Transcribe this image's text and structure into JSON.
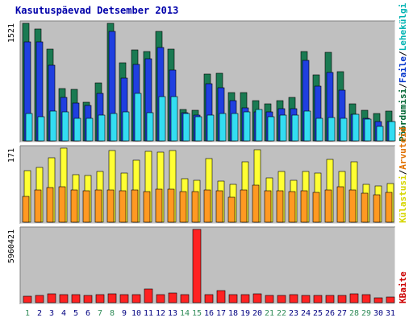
{
  "title": "Kasutuspäevad Detsember 2013",
  "panels": {
    "top": {
      "max_label": "1521"
    },
    "mid": {
      "max_label": "171"
    },
    "bottom": {
      "max_label": "5960421"
    }
  },
  "right_legend": {
    "top": [
      {
        "text": "Pöördumisi",
        "color": "#006633"
      },
      {
        "text": "/",
        "color": "#000000"
      },
      {
        "text": "Faile",
        "color": "#0033cc"
      },
      {
        "text": "/",
        "color": "#000000"
      },
      {
        "text": "Lehekülgi",
        "color": "#00b3b3"
      }
    ],
    "mid": [
      {
        "text": "Külastusi",
        "color": "#d6d600"
      },
      {
        "text": "/",
        "color": "#000000"
      },
      {
        "text": "Arvuteid",
        "color": "#e07000"
      }
    ],
    "bottom": [
      {
        "text": "KBaite",
        "color": "#cc0000"
      }
    ]
  },
  "chart_data": [
    {
      "type": "bar",
      "panel": "top",
      "ylim": [
        0,
        1521
      ],
      "categories": [
        "1",
        "2",
        "3",
        "4",
        "5",
        "6",
        "7",
        "8",
        "9",
        "10",
        "11",
        "12",
        "13",
        "14",
        "15",
        "16",
        "17",
        "18",
        "19",
        "20",
        "21",
        "22",
        "23",
        "24",
        "25",
        "26",
        "27",
        "28",
        "29",
        "30",
        "31"
      ],
      "series": [
        {
          "name": "Pöördumisi",
          "color": "#1a7a52",
          "values": [
            1521,
            1453,
            1188,
            682,
            669,
            500,
            747,
            1521,
            1010,
            1176,
            1154,
            1421,
            1184,
            407,
            398,
            865,
            871,
            622,
            627,
            523,
            484,
            518,
            558,
            1153,
            855,
            1142,
            896,
            483,
            393,
            350,
            390
          ]
        },
        {
          "name": "Faile",
          "color": "#1f3fe0",
          "values": [
            1281,
            1285,
            983,
            567,
            494,
            461,
            611,
            1413,
            816,
            990,
            1059,
            1210,
            918,
            365,
            330,
            737,
            689,
            526,
            426,
            377,
            372,
            415,
            419,
            1044,
            706,
            888,
            653,
            346,
            296,
            250,
            251
          ]
        },
        {
          "name": "Lehekülgi",
          "color": "#33ddf2",
          "values": [
            349,
            316,
            383,
            373,
            296,
            291,
            338,
            357,
            379,
            612,
            363,
            574,
            570,
            357,
            311,
            332,
            352,
            351,
            372,
            407,
            312,
            338,
            332,
            383,
            288,
            303,
            294,
            347,
            286,
            183,
            246
          ]
        }
      ]
    },
    {
      "type": "bar",
      "panel": "mid",
      "ylim": [
        0,
        171
      ],
      "categories": [
        "1",
        "2",
        "3",
        "4",
        "5",
        "6",
        "7",
        "8",
        "9",
        "10",
        "11",
        "12",
        "13",
        "14",
        "15",
        "16",
        "17",
        "18",
        "19",
        "20",
        "21",
        "22",
        "23",
        "24",
        "25",
        "26",
        "27",
        "28",
        "29",
        "30",
        "31"
      ],
      "series": [
        {
          "name": "Külastusi",
          "color": "#ffff33",
          "values": [
            119,
            127,
            148,
            171,
            110,
            108,
            118,
            165,
            113,
            143,
            164,
            162,
            165,
            101,
            97,
            146,
            94,
            87,
            139,
            168,
            103,
            118,
            97,
            117,
            113,
            145,
            118,
            140,
            88,
            83,
            90
          ]
        },
        {
          "name": "Arvuteid",
          "color": "#ff9922",
          "values": [
            60,
            75,
            79,
            81,
            75,
            73,
            74,
            75,
            73,
            75,
            71,
            77,
            76,
            71,
            71,
            74,
            72,
            58,
            74,
            86,
            73,
            73,
            70,
            72,
            68,
            74,
            81,
            75,
            67,
            63,
            68
          ]
        }
      ]
    },
    {
      "type": "bar",
      "panel": "bottom",
      "ylim": [
        0,
        5960421
      ],
      "categories": [
        "1",
        "2",
        "3",
        "4",
        "5",
        "6",
        "7",
        "8",
        "9",
        "10",
        "11",
        "12",
        "13",
        "14",
        "15",
        "16",
        "17",
        "18",
        "19",
        "20",
        "21",
        "22",
        "23",
        "24",
        "25",
        "26",
        "27",
        "28",
        "29",
        "30",
        "31"
      ],
      "series": [
        {
          "name": "KBaite",
          "color": "#ff2222",
          "values": [
            550000,
            620000,
            700000,
            640000,
            640000,
            620000,
            630000,
            700000,
            640000,
            650000,
            1100000,
            650000,
            780000,
            640000,
            5960421,
            640000,
            1000000,
            640000,
            640000,
            700000,
            620000,
            600000,
            640000,
            570000,
            580000,
            590000,
            580000,
            750000,
            660000,
            380000,
            440000
          ]
        }
      ]
    }
  ],
  "weekend_days": [
    "1",
    "7",
    "8",
    "14",
    "15",
    "21",
    "22",
    "28",
    "29"
  ],
  "colors": {
    "plot_bg": "#c0c0c0",
    "weekend_label": "#2e8b57",
    "weekday_label": "#000080",
    "title": "#0000aa"
  }
}
